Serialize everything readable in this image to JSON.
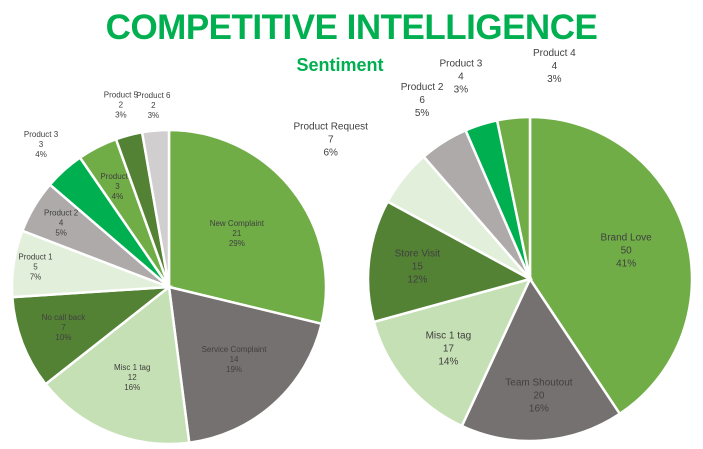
{
  "title": "COMPETITIVE INTELLIGENCE",
  "subtitle": "Sentiment",
  "chart_data": [
    {
      "type": "pie",
      "title": "",
      "start": "top",
      "direction": "clockwise",
      "slices": [
        {
          "label": "New Complaint",
          "value": 21,
          "percent": "29%",
          "color": "#70ad47"
        },
        {
          "label": "Service Complaint",
          "value": 14,
          "percent": "19%",
          "color": "#767171"
        },
        {
          "label": "Misc 1 tag",
          "value": 12,
          "percent": "16%",
          "color": "#c5e0b4"
        },
        {
          "label": "No call back",
          "value": 7,
          "percent": "10%",
          "color": "#548235"
        },
        {
          "label": "Product 1",
          "value": 5,
          "percent": "7%",
          "color": "#e2efda"
        },
        {
          "label": "Product 2",
          "value": 4,
          "percent": "5%",
          "color": "#aeaaaa"
        },
        {
          "label": "Product 3",
          "value": 3,
          "percent": "4%",
          "color": "#00b050"
        },
        {
          "label": "Product 4",
          "value": 3,
          "percent": "4%",
          "color": "#70ad47"
        },
        {
          "label": "Product 5",
          "value": 2,
          "percent": "3%",
          "color": "#548235"
        },
        {
          "label": "Product 6",
          "value": 2,
          "percent": "3%",
          "color": "#d0cece"
        }
      ]
    },
    {
      "type": "pie",
      "title": "",
      "start": "top",
      "direction": "clockwise",
      "slices": [
        {
          "label": "Brand Love",
          "value": 50,
          "percent": "41%",
          "color": "#70ad47"
        },
        {
          "label": "Team Shoutout",
          "value": 20,
          "percent": "16%",
          "color": "#767171"
        },
        {
          "label": "Misc 1 tag",
          "value": 17,
          "percent": "14%",
          "color": "#c5e0b4"
        },
        {
          "label": "Store Visit",
          "value": 15,
          "percent": "12%",
          "color": "#548235"
        },
        {
          "label": "Product Request",
          "value": 7,
          "percent": "6%",
          "color": "#e2efda"
        },
        {
          "label": "Product 2",
          "value": 6,
          "percent": "5%",
          "color": "#aeaaaa"
        },
        {
          "label": "Product 3",
          "value": 4,
          "percent": "3%",
          "color": "#00b050"
        },
        {
          "label": "Product 4",
          "value": 4,
          "percent": "3%",
          "color": "#70ad47"
        }
      ]
    }
  ]
}
